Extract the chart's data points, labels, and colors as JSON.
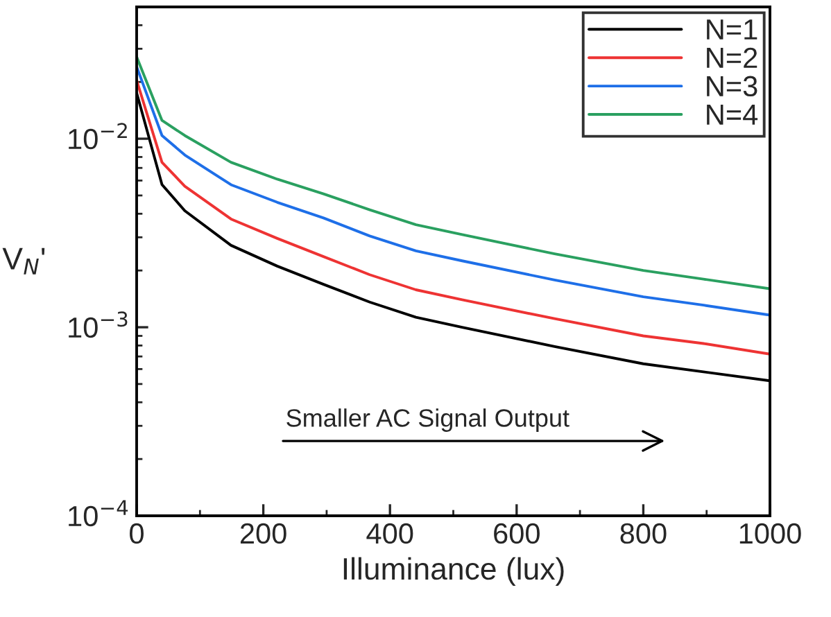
{
  "chart_data": {
    "type": "line",
    "xlabel": "Illuminance (lux)",
    "ylabel": "V$_{N}$'",
    "x": [
      0,
      40,
      76,
      149,
      222,
      295,
      368,
      441,
      514,
      660,
      800,
      895,
      1000
    ],
    "series": [
      {
        "name": "N=1",
        "color": "#000000",
        "values": [
          0.0175,
          0.00571,
          0.00415,
          0.00272,
          0.00211,
          0.00169,
          0.00136,
          0.00113,
          0.001,
          0.00079,
          0.00064,
          0.00058,
          0.00052
        ]
      },
      {
        "name": "N=2",
        "color": "#ee3333",
        "values": [
          0.0204,
          0.0075,
          0.0056,
          0.00375,
          0.00296,
          0.00237,
          0.0019,
          0.00158,
          0.0014,
          0.00111,
          0.0009,
          0.00082,
          0.00072
        ]
      },
      {
        "name": "N=3",
        "color": "#1e6fe8",
        "values": [
          0.0241,
          0.0104,
          0.0082,
          0.0057,
          0.0046,
          0.0038,
          0.00305,
          0.00254,
          0.00225,
          0.00178,
          0.00145,
          0.00131,
          0.00116
        ]
      },
      {
        "name": "N=4",
        "color": "#2aa060",
        "values": [
          0.0272,
          0.0125,
          0.0104,
          0.0075,
          0.0061,
          0.0051,
          0.0042,
          0.0035,
          0.0031,
          0.00245,
          0.002,
          0.0018,
          0.0016
        ]
      }
    ],
    "log": "y",
    "xlim": [
      0,
      1000
    ],
    "xticks": [
      0,
      200,
      400,
      600,
      800,
      1000
    ],
    "ylim": [
      0.0001,
      0.05
    ],
    "yticks": [
      {
        "value": 0.0001,
        "label": "10$^{−4}$"
      },
      {
        "value": 0.001,
        "label": "10$^{−3}$"
      },
      {
        "value": 0.01,
        "label": "10$^{−2}$"
      }
    ],
    "legend": "top right",
    "grid": false,
    "marker": "none",
    "line_style": "solid",
    "annotations": [
      "Smaller AC Signal Output"
    ]
  }
}
